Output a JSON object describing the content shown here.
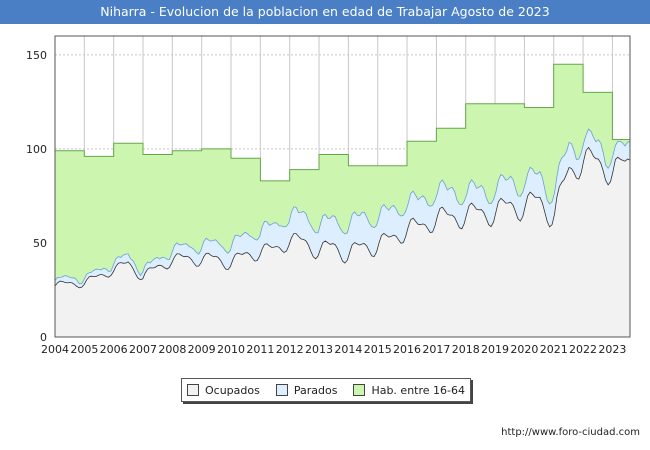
{
  "header": {
    "title": "Niharra - Evolucion de la poblacion en edad de Trabajar Agosto de 2023"
  },
  "source": "http://www.foro-ciudad.com",
  "colors": {
    "title_bg": "#4a7fc6",
    "hab": "#ccf5b0",
    "hab_line": "#66a84a",
    "parados": "#ddeeff",
    "parados_line": "#6a9fd6",
    "ocupados": "#f2f2f2",
    "ocupados_line": "#333333"
  },
  "chart_data": {
    "type": "area",
    "title": "Niharra - Evolucion de la poblacion en edad de Trabajar Agosto de 2023",
    "xlim": [
      2004,
      2023.6
    ],
    "ylim": [
      0,
      160
    ],
    "x_ticks": [
      "2004",
      "2005",
      "2006",
      "2007",
      "2008",
      "2009",
      "2010",
      "2011",
      "2012",
      "2013",
      "2014",
      "2015",
      "2016",
      "2017",
      "2018",
      "2019",
      "2020",
      "2021",
      "2022",
      "2023"
    ],
    "y_ticks": [
      0,
      50,
      100,
      150
    ],
    "grid": true,
    "legend": [
      {
        "name": "Ocupados",
        "color": "#f2f2f2"
      },
      {
        "name": "Parados",
        "color": "#ddeeff"
      },
      {
        "name": "Hab. entre 16-64",
        "color": "#ccf5b0"
      }
    ],
    "series": [
      {
        "name": "Hab. entre 16-64",
        "x": [
          2004,
          2005,
          2006,
          2007,
          2008,
          2009,
          2010,
          2011,
          2012,
          2013,
          2014,
          2015,
          2016,
          2017,
          2018,
          2019,
          2020,
          2021,
          2022,
          2023
        ],
        "values": [
          99,
          96,
          103,
          97,
          99,
          100,
          95,
          83,
          89,
          97,
          91,
          91,
          104,
          111,
          124,
          124,
          122,
          145,
          130,
          105
        ]
      },
      {
        "name": "Parados",
        "x": [
          2004,
          2004.5,
          2005,
          2005.5,
          2006,
          2006.5,
          2007,
          2007.5,
          2008,
          2008.5,
          2009,
          2009.5,
          2010,
          2010.5,
          2011,
          2011.5,
          2012,
          2012.5,
          2013,
          2013.5,
          2014,
          2014.5,
          2015,
          2015.5,
          2016,
          2016.5,
          2017,
          2017.5,
          2018,
          2018.5,
          2019,
          2019.5,
          2020,
          2020.5,
          2021,
          2021.5,
          2022,
          2022.5,
          2023,
          2023.6
        ],
        "values": [
          1,
          2,
          1,
          2,
          2,
          3,
          2,
          3,
          4,
          5,
          6,
          7,
          8,
          9,
          10,
          11,
          12,
          13,
          12,
          13,
          14,
          15,
          13,
          14,
          12,
          13,
          12,
          13,
          10,
          11,
          10,
          12,
          11,
          12,
          10,
          12,
          8,
          9,
          7,
          8
        ]
      },
      {
        "name": "Ocupados",
        "x": [
          2004,
          2004.5,
          2005,
          2005.5,
          2006,
          2006.5,
          2007,
          2007.5,
          2008,
          2008.5,
          2009,
          2009.5,
          2010,
          2010.5,
          2011,
          2011.5,
          2012,
          2012.5,
          2013,
          2013.5,
          2014,
          2014.5,
          2015,
          2015.5,
          2016,
          2016.5,
          2017,
          2017.5,
          2018,
          2018.5,
          2019,
          2019.5,
          2020,
          2020.5,
          2021,
          2021.5,
          2022,
          2022.5,
          2023,
          2023.6
        ],
        "values": [
          27,
          29,
          28,
          33,
          35,
          40,
          31,
          38,
          40,
          43,
          40,
          43,
          38,
          45,
          44,
          48,
          50,
          52,
          44,
          50,
          42,
          50,
          47,
          54,
          56,
          60,
          62,
          65,
          63,
          68,
          64,
          72,
          67,
          75,
          62,
          90,
          92,
          95,
          86,
          96
        ]
      }
    ]
  }
}
